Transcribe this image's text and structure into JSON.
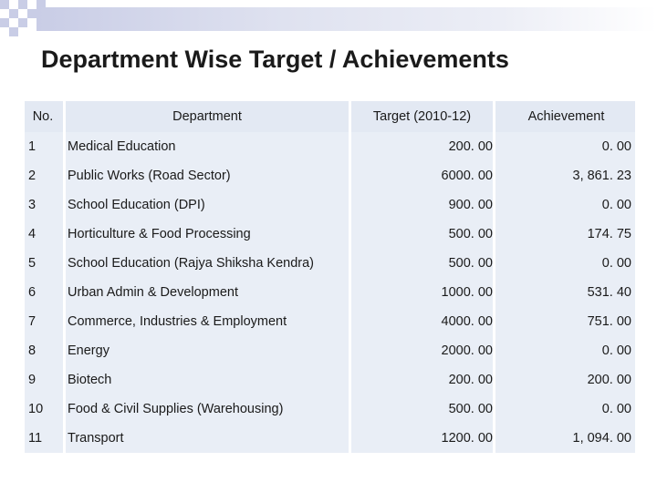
{
  "title": "Department Wise Target / Achievements",
  "colors": {
    "cell_bg": "#e9eef6",
    "banner": "#c9cde6"
  },
  "table": {
    "headers": {
      "no": "No.",
      "department": "Department",
      "target": "Target (2010-12)",
      "achievement": "Achievement"
    },
    "rows": [
      {
        "no": "1",
        "department": "Medical Education",
        "target": "200. 00",
        "achievement": "0. 00"
      },
      {
        "no": "2",
        "department": "Public Works (Road Sector)",
        "target": "6000. 00",
        "achievement": "3, 861. 23"
      },
      {
        "no": "3",
        "department": "School Education (DPI)",
        "target": "900. 00",
        "achievement": "0. 00"
      },
      {
        "no": "4",
        "department": "Horticulture & Food Processing",
        "target": "500. 00",
        "achievement": "174. 75"
      },
      {
        "no": "5",
        "department": "School Education (Rajya Shiksha Kendra)",
        "target": "500. 00",
        "achievement": "0. 00"
      },
      {
        "no": "6",
        "department": "Urban Admin & Development",
        "target": "1000. 00",
        "achievement": "531. 40"
      },
      {
        "no": "7",
        "department": "Commerce, Industries & Employment",
        "target": "4000. 00",
        "achievement": "751. 00"
      },
      {
        "no": "8",
        "department": "Energy",
        "target": "2000. 00",
        "achievement": "0. 00"
      },
      {
        "no": "9",
        "department": "Biotech",
        "target": "200. 00",
        "achievement": "200. 00"
      },
      {
        "no": "10",
        "department": "Food & Civil Supplies (Warehousing)",
        "target": "500. 00",
        "achievement": "0. 00"
      },
      {
        "no": "11",
        "department": "Transport",
        "target": "1200. 00",
        "achievement": "1, 094. 00"
      }
    ]
  }
}
